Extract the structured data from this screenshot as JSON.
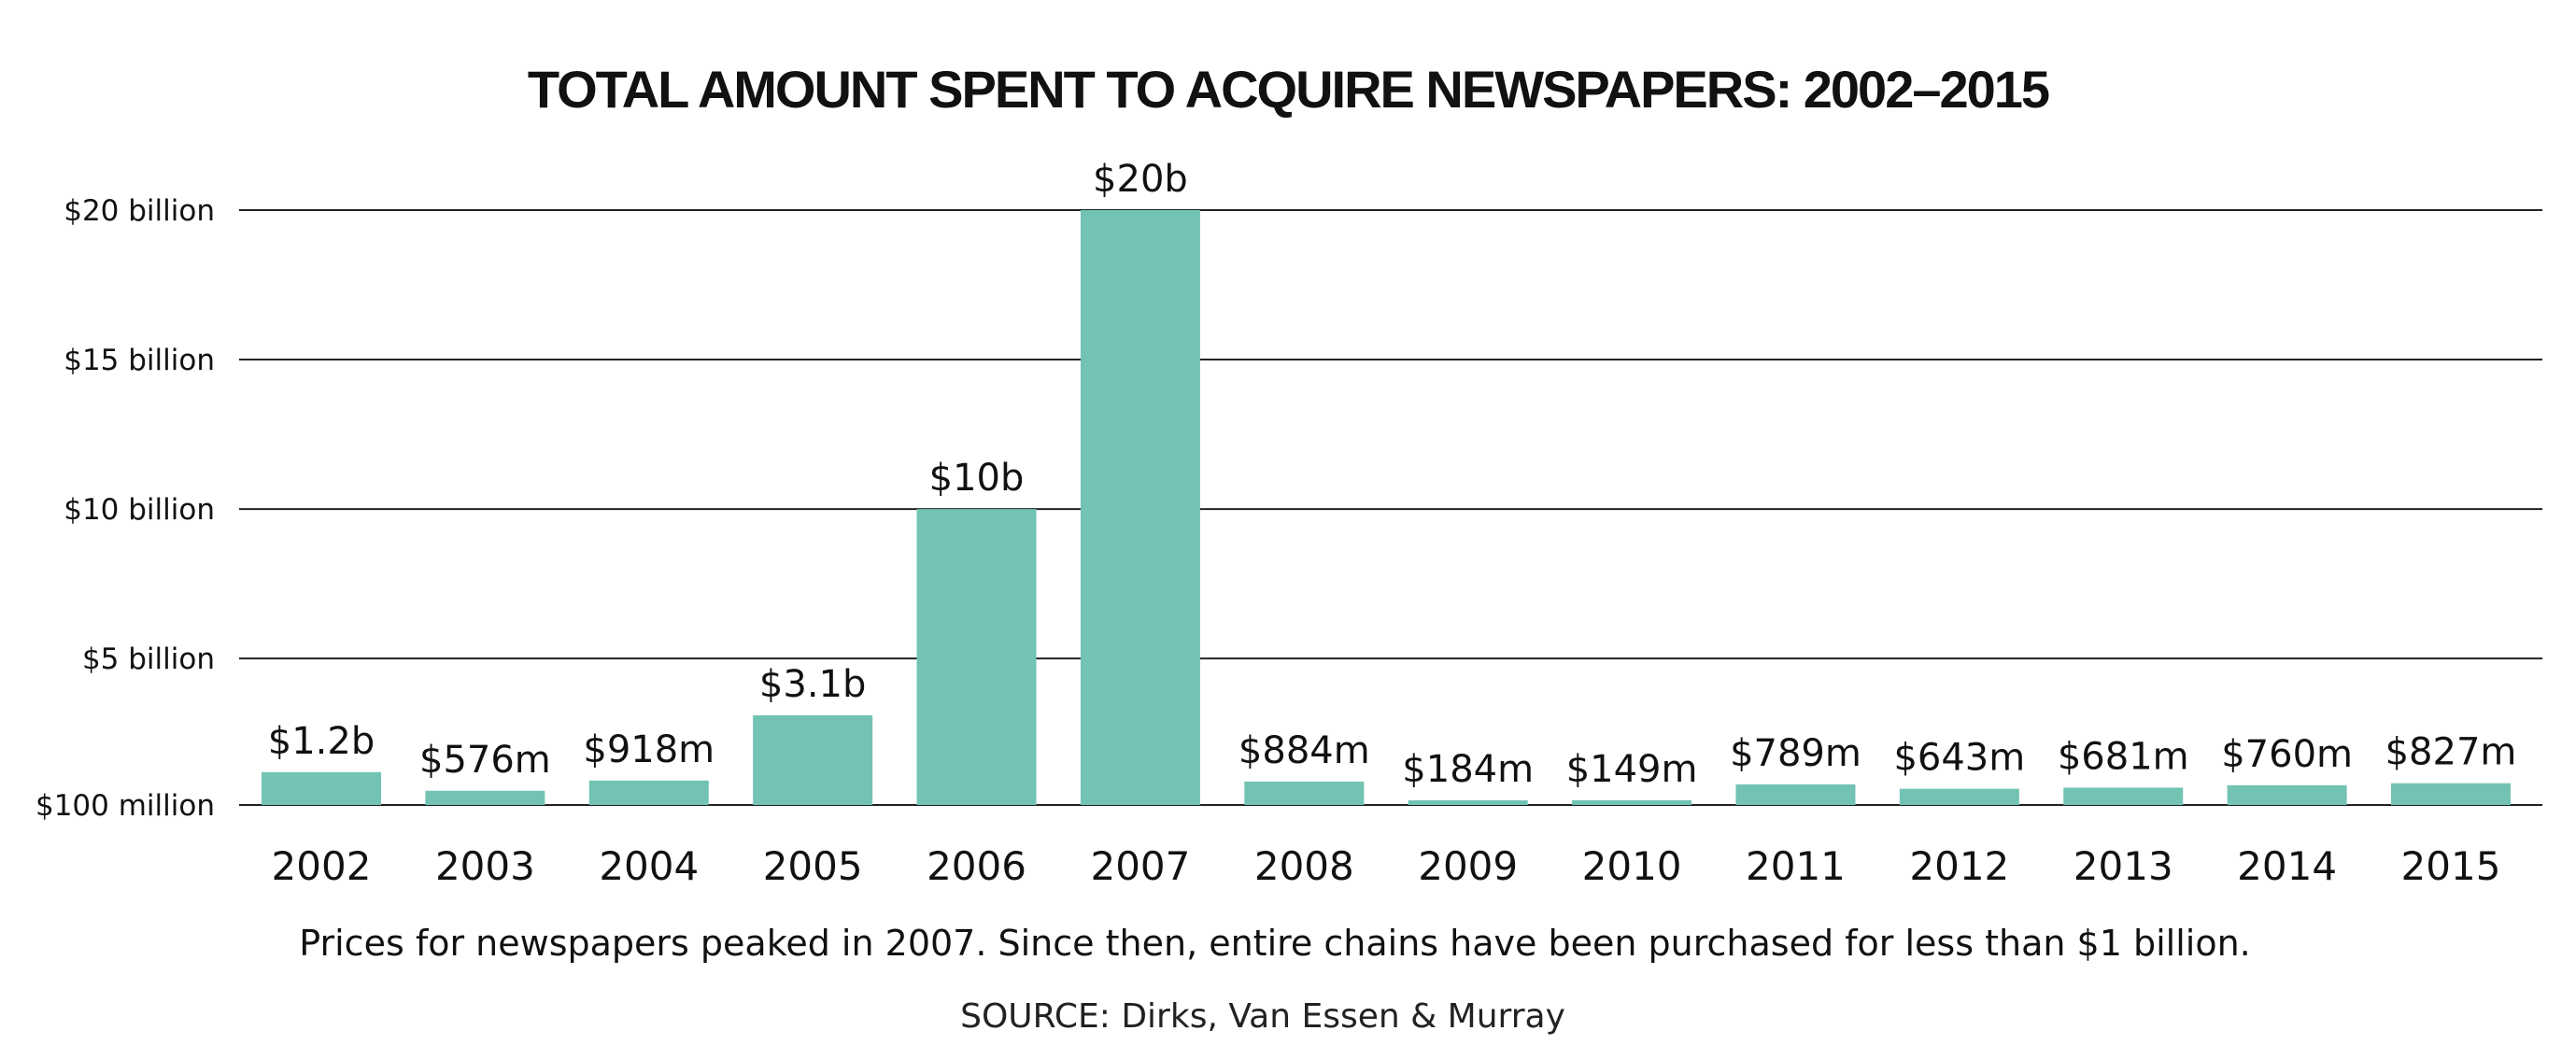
{
  "chart_data": {
    "type": "bar",
    "title": "TOTAL AMOUNT SPENT TO ACQUIRE NEWSPAPERS: 2002–2015",
    "categories": [
      "2002",
      "2003",
      "2004",
      "2005",
      "2006",
      "2007",
      "2008",
      "2009",
      "2010",
      "2011",
      "2012",
      "2013",
      "2014",
      "2015"
    ],
    "values": [
      1.2,
      0.576,
      0.918,
      3.1,
      10,
      20,
      0.884,
      0.184,
      0.149,
      0.789,
      0.643,
      0.681,
      0.76,
      0.827
    ],
    "value_units": "billion USD",
    "data_labels": [
      "$1.2b",
      "$576m",
      "$918m",
      "$3.1b",
      "$10b",
      "$20b",
      "$884m",
      "$184m",
      "$149m",
      "$789m",
      "$643m",
      "$681m",
      "$760m",
      "$827m"
    ],
    "yticks": [
      0.1,
      5,
      10,
      15,
      20
    ],
    "ytick_labels": [
      "$100 million",
      "$5 billion",
      "$10 billion",
      "$15 billion",
      "$20 billion"
    ],
    "ylim": [
      0.1,
      20
    ],
    "grid": true,
    "bar_color": "#72c3b4",
    "xlabel": "",
    "ylabel": "",
    "caption": "Prices for newspapers peaked in 2007. Since then, entire chains have been purchased for less than $1 billion.",
    "source": "SOURCE: Dirks, Van Essen & Murray"
  }
}
